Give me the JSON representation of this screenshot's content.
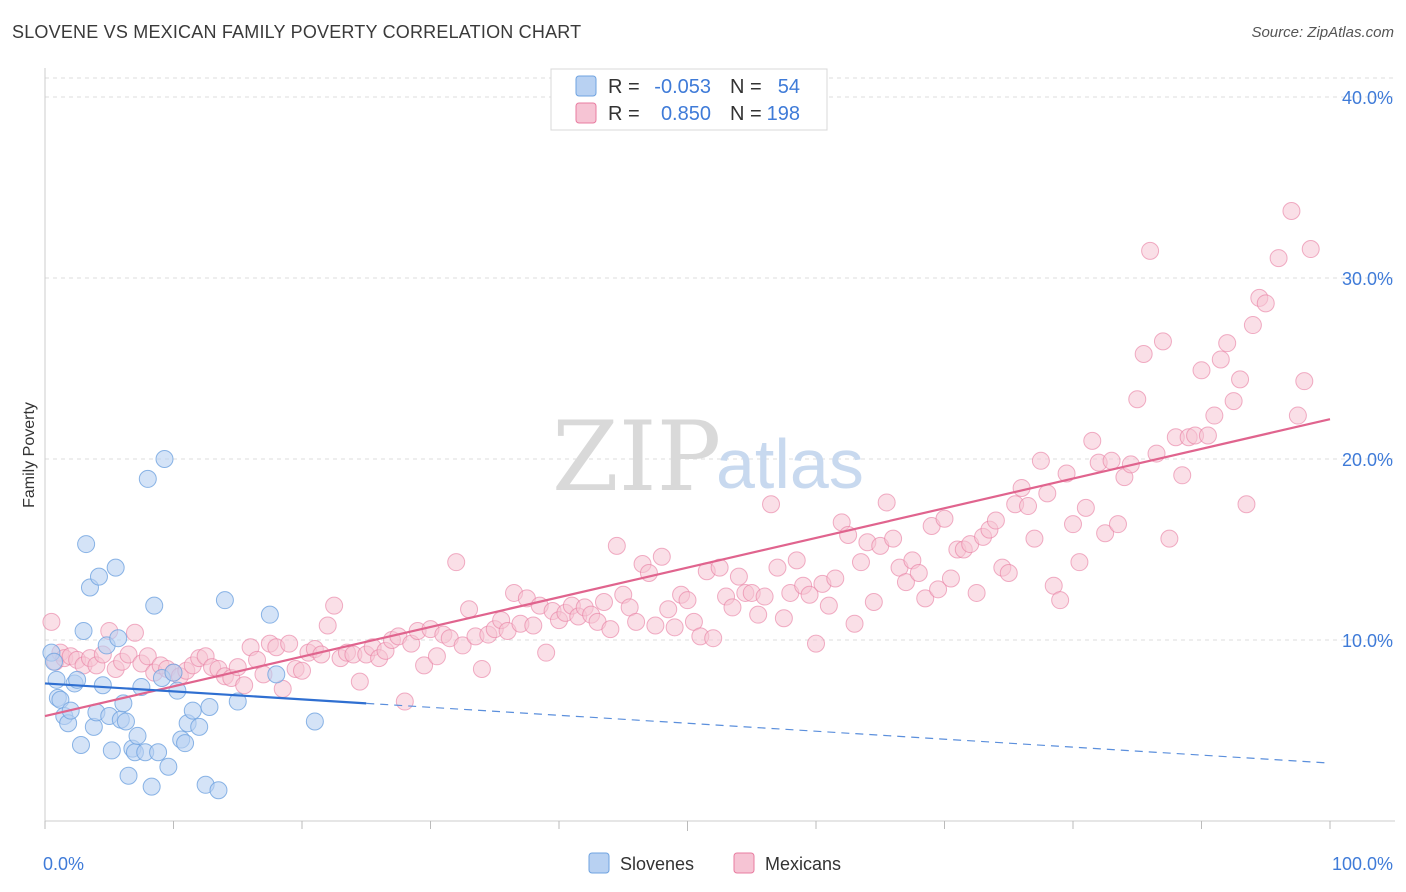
{
  "title": "SLOVENE VS MEXICAN FAMILY POVERTY CORRELATION CHART",
  "source": "Source: ZipAtlas.com",
  "watermark": {
    "part1": "ZIP",
    "part2": "atlas"
  },
  "colors": {
    "slovenes": "#6fa3e0",
    "slovenes_fill": "#b8d1f2",
    "mexicans": "#e87ca0",
    "mexicans_fill": "#f6c4d4",
    "accent": "#3f7bd8"
  },
  "chart_data": {
    "type": "scatter",
    "title": "SLOVENE VS MEXICAN FAMILY POVERTY CORRELATION CHART",
    "xlabel": "",
    "ylabel": "Family Poverty",
    "xlim": [
      0,
      100
    ],
    "ylim": [
      0,
      40
    ],
    "x_tick_labels": [
      "0.0%",
      "100.0%"
    ],
    "y_ticks": [
      10,
      20,
      30,
      40
    ],
    "y_tick_labels": [
      "10.0%",
      "20.0%",
      "30.0%",
      "40.0%"
    ],
    "grid": true,
    "legend_position": "top-center",
    "stats": [
      {
        "series": "Slovenes",
        "r_label": "R =",
        "r": "-0.053",
        "n_label": "N =",
        "n": "54"
      },
      {
        "series": "Mexicans",
        "r_label": "R =",
        "r": "0.850",
        "n_label": "N =",
        "n": "198"
      }
    ],
    "series": [
      {
        "name": "Slovenes",
        "trend": {
          "x": [
            0,
            25
          ],
          "y": [
            7.6,
            6.5
          ],
          "dashed_to": [
            100,
            3.2
          ]
        },
        "points": [
          [
            0.5,
            9.3
          ],
          [
            0.7,
            8.8
          ],
          [
            0.9,
            7.8
          ],
          [
            1.0,
            6.8
          ],
          [
            1.2,
            6.7
          ],
          [
            1.5,
            5.8
          ],
          [
            1.8,
            5.4
          ],
          [
            2.0,
            6.1
          ],
          [
            2.3,
            7.6
          ],
          [
            2.5,
            7.8
          ],
          [
            2.8,
            4.2
          ],
          [
            3.0,
            10.5
          ],
          [
            3.2,
            15.3
          ],
          [
            3.5,
            12.9
          ],
          [
            3.8,
            5.2
          ],
          [
            4.0,
            6.0
          ],
          [
            4.2,
            13.5
          ],
          [
            4.5,
            7.5
          ],
          [
            4.8,
            9.7
          ],
          [
            5.0,
            5.8
          ],
          [
            5.2,
            3.9
          ],
          [
            5.5,
            14.0
          ],
          [
            5.7,
            10.1
          ],
          [
            5.9,
            5.6
          ],
          [
            6.1,
            6.5
          ],
          [
            6.3,
            5.5
          ],
          [
            6.5,
            2.5
          ],
          [
            6.8,
            4.0
          ],
          [
            7.0,
            3.8
          ],
          [
            7.2,
            4.7
          ],
          [
            7.5,
            7.4
          ],
          [
            7.8,
            3.8
          ],
          [
            8.0,
            18.9
          ],
          [
            8.3,
            1.9
          ],
          [
            8.5,
            11.9
          ],
          [
            8.8,
            3.8
          ],
          [
            9.1,
            7.9
          ],
          [
            9.3,
            20.0
          ],
          [
            9.6,
            3.0
          ],
          [
            10.0,
            8.2
          ],
          [
            10.3,
            7.2
          ],
          [
            10.6,
            4.5
          ],
          [
            10.9,
            4.3
          ],
          [
            11.1,
            5.4
          ],
          [
            11.5,
            6.1
          ],
          [
            12.0,
            5.2
          ],
          [
            12.5,
            2.0
          ],
          [
            12.8,
            6.3
          ],
          [
            13.5,
            1.7
          ],
          [
            14.0,
            12.2
          ],
          [
            15.0,
            6.6
          ],
          [
            18.0,
            8.1
          ],
          [
            17.5,
            11.4
          ],
          [
            21.0,
            5.5
          ]
        ]
      },
      {
        "name": "Mexicans",
        "trend": {
          "x": [
            0,
            100
          ],
          "y": [
            5.8,
            22.2
          ]
        },
        "points": [
          [
            0.5,
            11.0
          ],
          [
            0.8,
            8.8
          ],
          [
            1.2,
            9.3
          ],
          [
            1.5,
            9.0
          ],
          [
            2.0,
            9.1
          ],
          [
            2.5,
            8.9
          ],
          [
            3.0,
            8.6
          ],
          [
            3.5,
            9.0
          ],
          [
            4.0,
            8.6
          ],
          [
            4.5,
            9.2
          ],
          [
            5.0,
            10.5
          ],
          [
            5.5,
            8.4
          ],
          [
            6.0,
            8.8
          ],
          [
            6.5,
            9.2
          ],
          [
            7.0,
            10.4
          ],
          [
            7.5,
            8.7
          ],
          [
            8.0,
            9.1
          ],
          [
            8.5,
            8.2
          ],
          [
            9.0,
            8.6
          ],
          [
            9.5,
            8.4
          ],
          [
            10.0,
            8.2
          ],
          [
            10.5,
            8.0
          ],
          [
            11.0,
            8.3
          ],
          [
            11.5,
            8.6
          ],
          [
            12.0,
            9.0
          ],
          [
            12.5,
            9.1
          ],
          [
            13.0,
            8.5
          ],
          [
            13.5,
            8.4
          ],
          [
            14.0,
            8.0
          ],
          [
            14.5,
            7.9
          ],
          [
            15.0,
            8.5
          ],
          [
            15.5,
            7.5
          ],
          [
            16.0,
            9.6
          ],
          [
            16.5,
            8.9
          ],
          [
            17.0,
            8.1
          ],
          [
            17.5,
            9.8
          ],
          [
            18.0,
            9.6
          ],
          [
            18.5,
            7.3
          ],
          [
            19.0,
            9.8
          ],
          [
            19.5,
            8.4
          ],
          [
            20.0,
            8.3
          ],
          [
            20.5,
            9.3
          ],
          [
            21.0,
            9.5
          ],
          [
            21.5,
            9.2
          ],
          [
            22.0,
            10.8
          ],
          [
            22.5,
            11.9
          ],
          [
            23.0,
            9.0
          ],
          [
            23.5,
            9.3
          ],
          [
            24.0,
            9.2
          ],
          [
            24.5,
            7.7
          ],
          [
            25.0,
            9.2
          ],
          [
            25.5,
            9.6
          ],
          [
            26.0,
            9.0
          ],
          [
            26.5,
            9.4
          ],
          [
            27.0,
            10.0
          ],
          [
            27.5,
            10.2
          ],
          [
            28.0,
            6.6
          ],
          [
            28.5,
            9.8
          ],
          [
            29.0,
            10.5
          ],
          [
            29.5,
            8.6
          ],
          [
            30.0,
            10.6
          ],
          [
            30.5,
            9.1
          ],
          [
            31.0,
            10.3
          ],
          [
            31.5,
            10.1
          ],
          [
            32.0,
            14.3
          ],
          [
            32.5,
            9.7
          ],
          [
            33.0,
            11.7
          ],
          [
            33.5,
            10.2
          ],
          [
            34.0,
            8.4
          ],
          [
            34.5,
            10.3
          ],
          [
            35.0,
            10.6
          ],
          [
            35.5,
            11.1
          ],
          [
            36.0,
            10.5
          ],
          [
            36.5,
            12.6
          ],
          [
            37.0,
            10.9
          ],
          [
            37.5,
            12.3
          ],
          [
            38.0,
            10.8
          ],
          [
            38.5,
            11.9
          ],
          [
            39.0,
            9.3
          ],
          [
            39.5,
            11.6
          ],
          [
            40.0,
            11.1
          ],
          [
            40.5,
            11.5
          ],
          [
            41.0,
            11.9
          ],
          [
            41.5,
            11.3
          ],
          [
            42.0,
            11.8
          ],
          [
            42.5,
            11.4
          ],
          [
            43.0,
            11.0
          ],
          [
            43.5,
            12.1
          ],
          [
            44.0,
            10.6
          ],
          [
            44.5,
            15.2
          ],
          [
            45.0,
            12.5
          ],
          [
            45.5,
            11.8
          ],
          [
            46.0,
            11.0
          ],
          [
            46.5,
            14.2
          ],
          [
            47.0,
            13.7
          ],
          [
            47.5,
            10.8
          ],
          [
            48.0,
            14.6
          ],
          [
            48.5,
            11.7
          ],
          [
            49.0,
            10.7
          ],
          [
            49.5,
            12.5
          ],
          [
            50.0,
            12.2
          ],
          [
            50.5,
            11.0
          ],
          [
            51.0,
            10.2
          ],
          [
            51.5,
            13.8
          ],
          [
            52.0,
            10.1
          ],
          [
            52.5,
            14.0
          ],
          [
            53.0,
            12.4
          ],
          [
            53.5,
            11.8
          ],
          [
            54.0,
            13.5
          ],
          [
            54.5,
            12.6
          ],
          [
            55.0,
            12.6
          ],
          [
            55.5,
            11.4
          ],
          [
            56.0,
            12.4
          ],
          [
            56.5,
            17.5
          ],
          [
            57.0,
            14.0
          ],
          [
            57.5,
            11.2
          ],
          [
            58.0,
            12.6
          ],
          [
            58.5,
            14.4
          ],
          [
            59.0,
            13.0
          ],
          [
            59.5,
            12.5
          ],
          [
            60.0,
            9.8
          ],
          [
            60.5,
            13.1
          ],
          [
            61.0,
            11.9
          ],
          [
            61.5,
            13.4
          ],
          [
            62.0,
            16.5
          ],
          [
            62.5,
            15.8
          ],
          [
            63.0,
            10.9
          ],
          [
            63.5,
            14.3
          ],
          [
            64.0,
            15.4
          ],
          [
            64.5,
            12.1
          ],
          [
            65.0,
            15.2
          ],
          [
            65.5,
            17.6
          ],
          [
            66.0,
            15.6
          ],
          [
            66.5,
            14.0
          ],
          [
            67.0,
            13.2
          ],
          [
            67.5,
            14.4
          ],
          [
            68.0,
            13.7
          ],
          [
            68.5,
            12.3
          ],
          [
            69.0,
            16.3
          ],
          [
            69.5,
            12.8
          ],
          [
            70.0,
            16.7
          ],
          [
            70.5,
            13.4
          ],
          [
            71.0,
            15.0
          ],
          [
            71.5,
            15.0
          ],
          [
            72.0,
            15.3
          ],
          [
            72.5,
            12.6
          ],
          [
            73.0,
            15.7
          ],
          [
            73.5,
            16.1
          ],
          [
            74.0,
            16.6
          ],
          [
            74.5,
            14.0
          ],
          [
            75.0,
            13.7
          ],
          [
            75.5,
            17.5
          ],
          [
            76.0,
            18.4
          ],
          [
            76.5,
            17.4
          ],
          [
            77.0,
            15.6
          ],
          [
            77.5,
            19.9
          ],
          [
            78.0,
            18.1
          ],
          [
            78.5,
            13.0
          ],
          [
            79.0,
            12.2
          ],
          [
            79.5,
            19.2
          ],
          [
            80.0,
            16.4
          ],
          [
            80.5,
            14.3
          ],
          [
            81.0,
            17.3
          ],
          [
            81.5,
            21.0
          ],
          [
            82.0,
            19.8
          ],
          [
            82.5,
            15.9
          ],
          [
            83.0,
            19.9
          ],
          [
            83.5,
            16.4
          ],
          [
            84.0,
            19.0
          ],
          [
            84.5,
            19.7
          ],
          [
            85.0,
            23.3
          ],
          [
            85.5,
            25.8
          ],
          [
            86.0,
            31.5
          ],
          [
            86.5,
            20.3
          ],
          [
            87.0,
            26.5
          ],
          [
            87.5,
            15.6
          ],
          [
            88.0,
            21.2
          ],
          [
            88.5,
            19.1
          ],
          [
            89.0,
            21.2
          ],
          [
            89.5,
            21.3
          ],
          [
            90.0,
            24.9
          ],
          [
            90.5,
            21.3
          ],
          [
            91.0,
            22.4
          ],
          [
            91.5,
            25.5
          ],
          [
            92.0,
            26.4
          ],
          [
            92.5,
            23.2
          ],
          [
            93.0,
            24.4
          ],
          [
            93.5,
            17.5
          ],
          [
            94.0,
            27.4
          ],
          [
            94.5,
            28.9
          ],
          [
            95.0,
            28.6
          ],
          [
            96.0,
            31.1
          ],
          [
            97.0,
            33.7
          ],
          [
            97.5,
            22.4
          ],
          [
            98.0,
            24.3
          ],
          [
            98.5,
            31.6
          ]
        ]
      }
    ]
  },
  "legend_bottom": [
    {
      "name": "Slovenes"
    },
    {
      "name": "Mexicans"
    }
  ]
}
